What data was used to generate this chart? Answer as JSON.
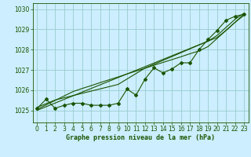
{
  "title": "Graphe pression niveau de la mer (hPa)",
  "xlim": [
    -0.5,
    23.5
  ],
  "ylim": [
    1024.4,
    1030.3
  ],
  "yticks": [
    1025,
    1026,
    1027,
    1028,
    1029,
    1030
  ],
  "xticks": [
    0,
    1,
    2,
    3,
    4,
    5,
    6,
    7,
    8,
    9,
    10,
    11,
    12,
    13,
    14,
    15,
    16,
    17,
    18,
    19,
    20,
    21,
    22,
    23
  ],
  "bg_color": "#cceeff",
  "grid_color": "#99cccc",
  "line_color": "#1a5500",
  "hours": [
    0,
    1,
    2,
    3,
    4,
    5,
    6,
    7,
    8,
    9,
    10,
    11,
    12,
    13,
    14,
    15,
    16,
    17,
    18,
    19,
    20,
    21,
    22,
    23
  ],
  "pressure_main": [
    1025.1,
    1025.55,
    1025.1,
    1025.25,
    1025.35,
    1025.35,
    1025.25,
    1025.25,
    1025.25,
    1025.35,
    1026.05,
    1025.75,
    1026.55,
    1027.1,
    1026.85,
    1027.05,
    1027.35,
    1027.35,
    1028.0,
    1028.5,
    1028.95,
    1029.45,
    1029.65,
    1029.75
  ],
  "pressure_linear1": [
    1025.05,
    1025.27,
    1025.49,
    1025.71,
    1025.93,
    1026.08,
    1026.22,
    1026.37,
    1026.51,
    1026.65,
    1026.8,
    1026.94,
    1027.08,
    1027.23,
    1027.37,
    1027.51,
    1027.65,
    1027.8,
    1027.94,
    1028.15,
    1028.55,
    1028.95,
    1029.35,
    1029.75
  ],
  "pressure_linear2": [
    1025.0,
    1025.18,
    1025.36,
    1025.54,
    1025.72,
    1025.9,
    1026.08,
    1026.26,
    1026.44,
    1026.62,
    1026.8,
    1026.98,
    1027.16,
    1027.34,
    1027.52,
    1027.7,
    1027.88,
    1028.06,
    1028.24,
    1028.42,
    1028.6,
    1028.95,
    1029.35,
    1029.7
  ],
  "pressure_linear3": [
    1025.15,
    1025.33,
    1025.51,
    1025.62,
    1025.73,
    1025.84,
    1025.95,
    1026.06,
    1026.17,
    1026.28,
    1026.55,
    1026.82,
    1027.09,
    1027.28,
    1027.47,
    1027.66,
    1027.85,
    1028.04,
    1028.23,
    1028.42,
    1028.7,
    1029.1,
    1029.5,
    1029.8
  ]
}
